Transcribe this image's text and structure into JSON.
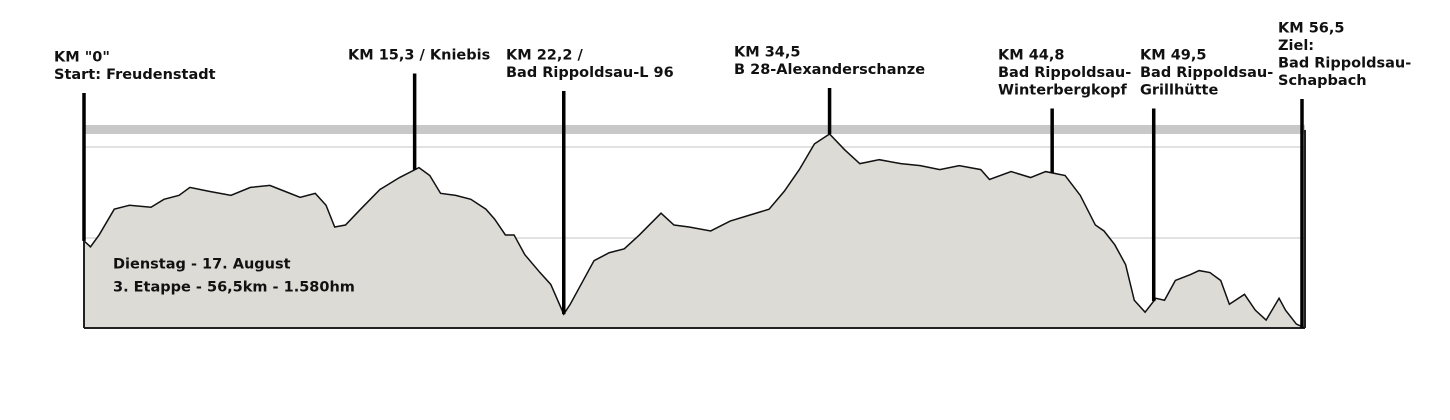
{
  "chart_data": {
    "type": "area",
    "x": [
      0,
      0.3,
      0.7,
      1.4,
      2.1,
      3.1,
      3.7,
      4.4,
      4.9,
      5.8,
      6.8,
      7.7,
      8.6,
      9.3,
      10.0,
      10.7,
      11.2,
      11.6,
      12.1,
      12.8,
      13.7,
      14.6,
      15.5,
      16.0,
      16.5,
      17.2,
      17.9,
      18.6,
      19.0,
      19.5,
      19.9,
      20.4,
      21.1,
      21.6,
      22.2,
      22.5,
      23.0,
      23.6,
      24.3,
      25.0,
      25.7,
      26.7,
      27.3,
      28.0,
      29.0,
      29.9,
      30.8,
      31.7,
      32.4,
      33.1,
      33.8,
      34.5,
      35.2,
      35.9,
      36.8,
      37.8,
      38.7,
      39.6,
      40.5,
      41.5,
      41.9,
      42.9,
      43.8,
      44.5,
      45.4,
      46.1,
      46.8,
      47.2,
      47.7,
      48.2,
      48.6,
      49.1,
      49.6,
      50.0,
      50.5,
      51.2,
      51.6,
      52.1,
      52.6,
      53.0,
      53.7,
      54.2,
      54.7,
      55.3,
      55.6,
      56.1,
      56.5
    ],
    "values": [
      44,
      41,
      47,
      60,
      62,
      61,
      65,
      67,
      71,
      69,
      67,
      71,
      72,
      69,
      66,
      68,
      62,
      51,
      52,
      60,
      70,
      76,
      81,
      77,
      68,
      67,
      65,
      60,
      55,
      47,
      47,
      37,
      28,
      22,
      7,
      12,
      22,
      34,
      38,
      40,
      47,
      58,
      52,
      51,
      49,
      54,
      57,
      60,
      69,
      80,
      93,
      98,
      90,
      83,
      85,
      83,
      82,
      80,
      82,
      80,
      75,
      79,
      76,
      79,
      77,
      67,
      52,
      49,
      42,
      32,
      14,
      8,
      15,
      14,
      24,
      27,
      29,
      28,
      24,
      12,
      17,
      9,
      4,
      15,
      9,
      2,
      0
    ],
    "xlim": [
      0,
      56.5
    ],
    "ylim": [
      0,
      100
    ],
    "color": "#dcdbd6",
    "annotations": [
      {
        "km": 0,
        "lines": [
          "KM \"0\"",
          "Start: Freudenstadt"
        ]
      },
      {
        "km": 15.3,
        "lines": [
          "KM 15,3 / Kniebis"
        ]
      },
      {
        "km": 22.2,
        "lines": [
          "KM 22,2 /",
          "Bad Rippoldsau-L 96"
        ]
      },
      {
        "km": 34.5,
        "lines": [
          "KM 34,5",
          "B 28-Alexanderschanze"
        ]
      },
      {
        "km": 44.8,
        "lines": [
          "KM 44,8",
          "Bad Rippoldsau-",
          "Winterbergkopf"
        ]
      },
      {
        "km": 49.5,
        "lines": [
          "KM 49,5",
          "Bad Rippoldsau-",
          "Grillhütte"
        ]
      },
      {
        "km": 56.5,
        "lines": [
          "KM 56,5",
          "Ziel:",
          "Bad Rippoldsau-",
          "Schapbach"
        ]
      }
    ],
    "notes": [
      "Dienstag - 17. August",
      "3. Etappe - 56,5km - 1.580hm"
    ]
  }
}
